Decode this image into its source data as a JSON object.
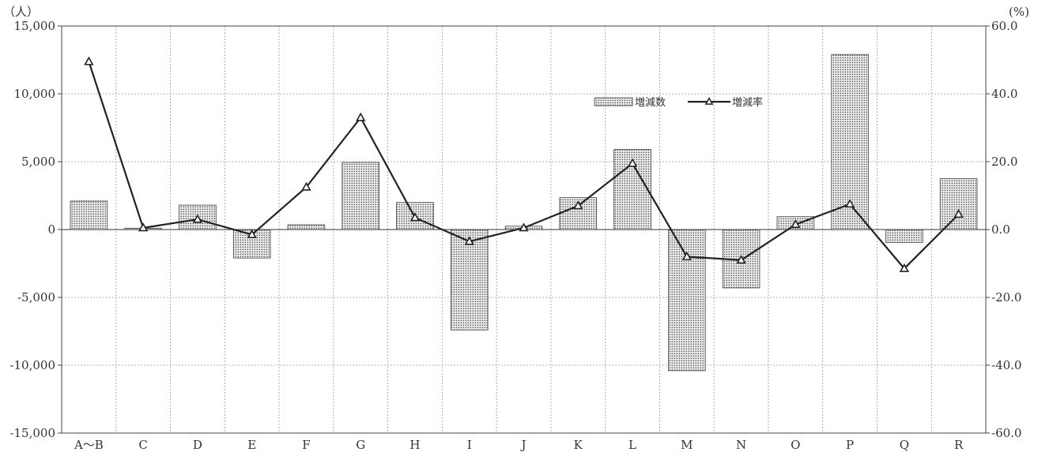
{
  "chart_data": {
    "type": "bar",
    "categories": [
      "A～B",
      "C",
      "D",
      "E",
      "F",
      "G",
      "H",
      "I",
      "J",
      "K",
      "L",
      "M",
      "N",
      "O",
      "P",
      "Q",
      "R"
    ],
    "series": [
      {
        "name": "増減数",
        "type": "bar",
        "axis": "left",
        "values": [
          2100,
          100,
          1800,
          -2100,
          350,
          4950,
          2000,
          -7400,
          250,
          2350,
          5900,
          -10400,
          -4300,
          950,
          12900,
          -950,
          3750
        ]
      },
      {
        "name": "増減率",
        "type": "line",
        "axis": "right",
        "marker": "triangle",
        "values": [
          49.5,
          0.5,
          3.0,
          -1.5,
          12.5,
          33.0,
          3.5,
          -3.5,
          0.5,
          7.0,
          19.5,
          -8.0,
          -9.0,
          1.5,
          7.5,
          -11.5,
          4.5
        ]
      }
    ],
    "y_left": {
      "unit": "（人）",
      "ylim": [
        -15000,
        15000
      ],
      "ticks": [
        15000,
        10000,
        5000,
        0,
        -5000,
        -10000,
        -15000
      ],
      "tick_labels": [
        "15,000",
        "10,000",
        "5,000",
        "0",
        "-5,000",
        "-10,000",
        "-15,000"
      ]
    },
    "y_right": {
      "unit": "(%)",
      "ylim": [
        -60,
        60
      ],
      "ticks": [
        60,
        40,
        20,
        0,
        -20,
        -40,
        -60
      ],
      "tick_labels": [
        "60.0",
        "40.0",
        "20.0",
        "0.0",
        "-20.0",
        "-40.0",
        "-60.0"
      ]
    },
    "grid": true,
    "legend_position": "top-right",
    "colors": {
      "bar_fill": "#e8e8e8",
      "bar_dot": "#3a3a3a",
      "line": "#222222",
      "grid": "#9a9a9a"
    }
  }
}
